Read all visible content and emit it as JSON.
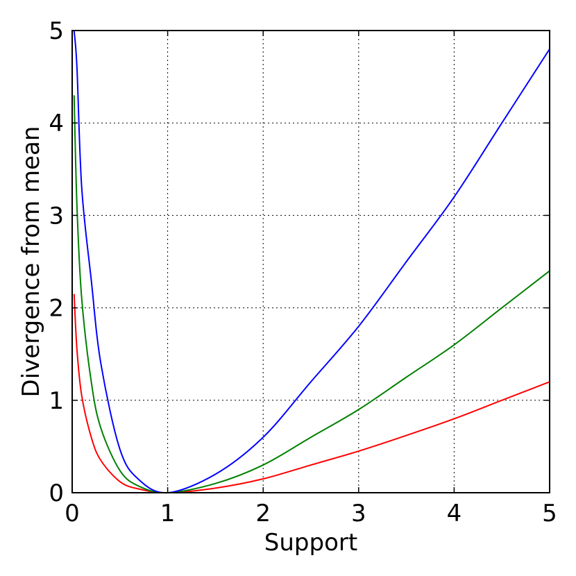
{
  "chart_data": {
    "type": "line",
    "title": "",
    "xlabel": "Support",
    "ylabel": "Divergence from mean",
    "xlim": [
      0,
      5
    ],
    "ylim": [
      0,
      5
    ],
    "xticks": [
      "0",
      "1",
      "2",
      "3",
      "4",
      "5"
    ],
    "yticks": [
      "0",
      "1",
      "2",
      "3",
      "4",
      "5"
    ],
    "grid": true,
    "grid_style": "dotted",
    "legend": "none",
    "series": [
      {
        "color": "#ff0000",
        "x": [
          0.02,
          0.05,
          0.1,
          0.2,
          0.3,
          0.5,
          0.7,
          1.0,
          1.5,
          2.0,
          2.5,
          3.0,
          3.5,
          4.0,
          4.5,
          5.0
        ],
        "y": [
          2.15,
          1.55,
          1.05,
          0.6,
          0.35,
          0.12,
          0.04,
          0.0,
          0.05,
          0.15,
          0.3,
          0.45,
          0.62,
          0.8,
          1.0,
          1.2
        ]
      },
      {
        "color": "#008000",
        "x": [
          0.02,
          0.05,
          0.1,
          0.2,
          0.3,
          0.5,
          0.7,
          1.0,
          1.5,
          2.0,
          2.5,
          3.0,
          3.5,
          4.0,
          4.5,
          5.0
        ],
        "y": [
          4.3,
          3.1,
          2.1,
          1.2,
          0.7,
          0.24,
          0.07,
          0.0,
          0.1,
          0.3,
          0.6,
          0.9,
          1.25,
          1.6,
          2.0,
          2.4
        ]
      },
      {
        "color": "#0000ff",
        "x": [
          0.02,
          0.05,
          0.1,
          0.2,
          0.3,
          0.5,
          0.7,
          1.0,
          1.5,
          2.0,
          2.5,
          3.0,
          3.5,
          4.0,
          4.5,
          5.0
        ],
        "y": [
          5.0,
          4.6,
          3.3,
          2.3,
          1.4,
          0.47,
          0.14,
          0.0,
          0.2,
          0.6,
          1.2,
          1.8,
          2.5,
          3.2,
          4.0,
          4.8
        ]
      }
    ]
  }
}
